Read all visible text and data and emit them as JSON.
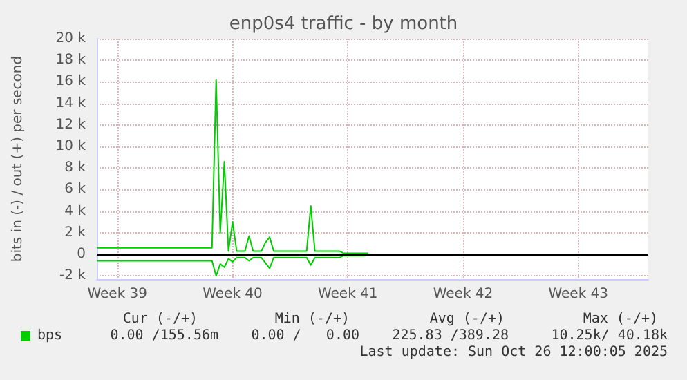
{
  "chart_data": {
    "type": "line",
    "title": "enp0s4 traffic - by month",
    "ylabel": "bits in (-) / out (+) per second",
    "categories": [
      null,
      null,
      null,
      null,
      null,
      "Week 39",
      null,
      null,
      null,
      null,
      null,
      null,
      null,
      null,
      null,
      null,
      null,
      null,
      null,
      null,
      null,
      null,
      null,
      null,
      null,
      null,
      null,
      null,
      null,
      null,
      null,
      null,
      null,
      "Week 40",
      null,
      null,
      null,
      null,
      null,
      null,
      null,
      null,
      null,
      null,
      null,
      null,
      null,
      null,
      null,
      null,
      null,
      null,
      null,
      null,
      null,
      null,
      null,
      null,
      null,
      null,
      null,
      "Week 41",
      null,
      null,
      null,
      null,
      null,
      null,
      null,
      null,
      null,
      null,
      null,
      null,
      null,
      null,
      null,
      null,
      null,
      null,
      null,
      null,
      null,
      null,
      null,
      null,
      null,
      null,
      null,
      "Week 42",
      null,
      null,
      null,
      null,
      null,
      null,
      null,
      null,
      null,
      null,
      null,
      null,
      null,
      null,
      null,
      null,
      null,
      null,
      null,
      null,
      null,
      null,
      null,
      null,
      null,
      null,
      null,
      "Week 43",
      null,
      null,
      null,
      null,
      null,
      null,
      null,
      null,
      null,
      null,
      null,
      null,
      null,
      null,
      null,
      null,
      null
    ],
    "ylim": [
      -2300,
      20000
    ],
    "yticks": [
      {
        "value": -2000,
        "label": "-2 k"
      },
      0,
      {
        "value": 2000,
        "label": "2 k"
      },
      {
        "value": 4000,
        "label": "4 k"
      },
      {
        "value": 6000,
        "label": "6 k"
      },
      {
        "value": 8000,
        "label": "8 k"
      },
      {
        "value": 10000,
        "label": "10 k"
      },
      {
        "value": 12000,
        "label": "12 k"
      },
      {
        "value": 14000,
        "label": "14 k"
      },
      {
        "value": 16000,
        "label": "16 k"
      },
      {
        "value": 18000,
        "label": "18 k"
      },
      {
        "value": 20000,
        "label": "20 k"
      }
    ],
    "grid": true,
    "legend": "bottom left",
    "marker": "none",
    "line_style": "solid",
    "series": [
      {
        "name": "bps",
        "color": "#00cc00",
        "values": [
          600,
          600,
          600,
          600,
          600,
          600,
          600,
          600,
          600,
          600,
          600,
          600,
          600,
          600,
          600,
          600,
          600,
          600,
          600,
          600,
          600,
          600,
          600,
          600,
          600,
          600,
          600,
          600,
          600,
          16200,
          2000,
          8600,
          300,
          3000,
          300,
          300,
          300,
          1700,
          300,
          300,
          300,
          1100,
          1600,
          300,
          300,
          300,
          300,
          300,
          300,
          300,
          300,
          300,
          4500,
          300,
          300,
          300,
          300,
          300,
          300,
          300,
          100,
          100,
          100,
          100,
          100,
          100,
          100,
          null,
          null,
          null,
          null,
          null,
          null,
          null,
          null,
          null,
          null,
          null,
          null,
          null,
          null,
          null,
          null,
          null,
          null,
          null,
          null,
          null,
          null,
          null,
          null,
          null,
          null,
          null,
          null,
          null,
          null,
          null,
          null,
          null,
          null,
          null,
          null,
          null,
          null,
          null,
          null,
          null,
          null,
          null,
          null,
          null,
          null,
          null,
          null,
          null,
          null,
          null,
          null,
          null,
          null,
          null,
          null,
          null,
          null,
          null,
          null,
          null,
          null,
          null,
          null,
          null,
          null,
          null,
          null
        ]
      },
      {
        "color": "#00cc00",
        "values": [
          -600,
          -600,
          -600,
          -600,
          -600,
          -600,
          -600,
          -600,
          -600,
          -600,
          -600,
          -600,
          -600,
          -600,
          -600,
          -600,
          -600,
          -600,
          -600,
          -600,
          -600,
          -600,
          -600,
          -600,
          -600,
          -600,
          -600,
          -600,
          -600,
          -2000,
          -900,
          -1200,
          -400,
          -700,
          -300,
          -300,
          -300,
          -600,
          -300,
          -300,
          -300,
          -800,
          -1300,
          -300,
          -300,
          -300,
          -300,
          -300,
          -300,
          -300,
          -300,
          -300,
          -1000,
          -300,
          -300,
          -300,
          -300,
          -300,
          -300,
          -300,
          -100,
          -100,
          -100,
          -100,
          -100,
          -100,
          0,
          null,
          null,
          null,
          null,
          null,
          null,
          null,
          null,
          null,
          null,
          null,
          null,
          null,
          null,
          null,
          null,
          null,
          null,
          null,
          null,
          null,
          null,
          null,
          null,
          null,
          null,
          null,
          null,
          null,
          null,
          null,
          null,
          null,
          null,
          null,
          null,
          null,
          null,
          null,
          null,
          null,
          null,
          null,
          null,
          null,
          null,
          null,
          null,
          null,
          null,
          null,
          null,
          null,
          null,
          null,
          null,
          null,
          null,
          null,
          null,
          null,
          null,
          null,
          null,
          null,
          null,
          null,
          null
        ]
      }
    ],
    "ref_lines": [
      {
        "axis": "y",
        "value": 0,
        "color": "#000000"
      }
    ],
    "annotations": [
      "Cur (-/+)",
      "Min (-/+)",
      "Avg (-/+)",
      "Max (-/+)",
      "0.00 /155.56m",
      "0.00 /   0.00",
      "225.83 /389.28",
      "10.25k/ 40.18k",
      "Last update: Sun Oct 26 12:00:05 2025"
    ]
  }
}
